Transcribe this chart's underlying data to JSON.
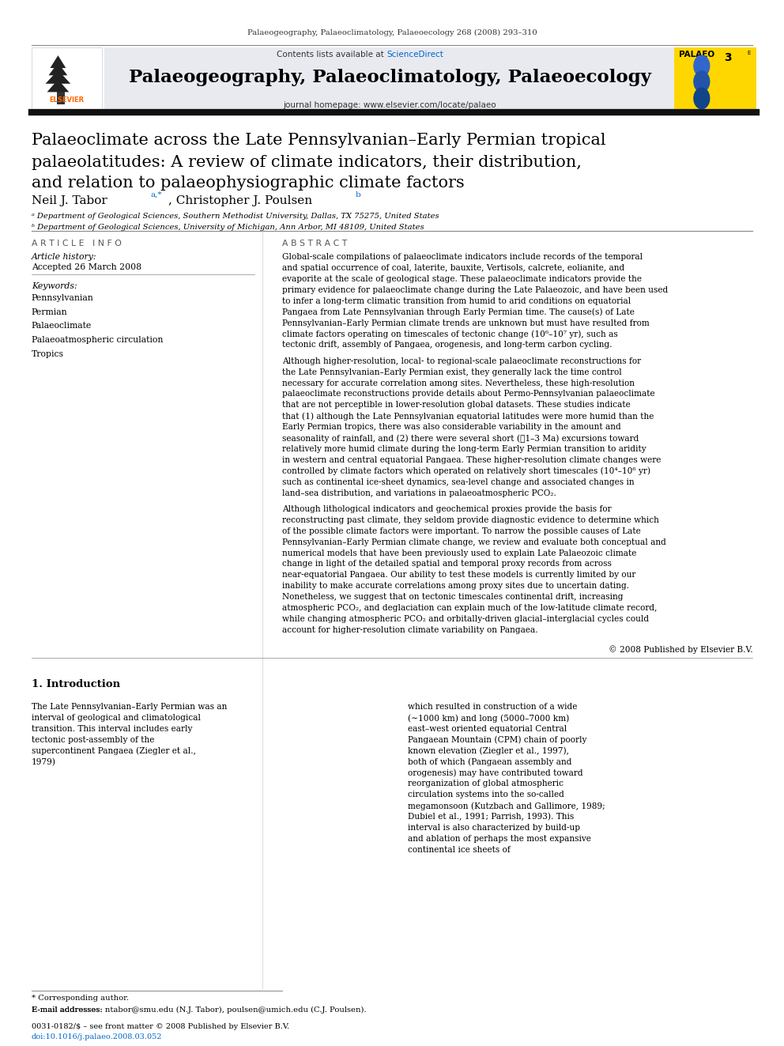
{
  "page_width": 9.92,
  "page_height": 13.23,
  "background_color": "#ffffff",
  "journal_ref": "Palaeogeography, Palaeoclimatology, Palaeoecology 268 (2008) 293–310",
  "journal_title": "Palaeogeography, Palaeoclimatology, Palaeoecology",
  "journal_homepage": "journal homepage: www.elsevier.com/locate/palaeo",
  "contents_line": "Contents lists available at ScienceDirect",
  "sciencedirect_color": "#0066cc",
  "elsevier_color": "#FF6600",
  "header_bg": "#e8eaf0",
  "palaeo_label_bg": "#FFD700",
  "article_title_line1": "Palaeoclimate across the Late Pennsylvanian–Early Permian tropical",
  "article_title_line2": "palaeolatitudes: A review of climate indicators, their distribution,",
  "article_title_line3": "and relation to palaeophysiographic climate factors",
  "author_main": "Neil J. Tabor ",
  "author_super1": "a,*",
  "author2": ", Christopher J. Poulsen ",
  "author_super2": "b",
  "affil_a": "ᵃ Department of Geological Sciences, Southern Methodist University, Dallas, TX 75275, United States",
  "affil_b": "ᵇ Department of Geological Sciences, University of Michigan, Ann Arbor, MI 48109, United States",
  "article_info_header": "A R T I C L E   I N F O",
  "abstract_header": "A B S T R A C T",
  "article_history": "Article history:",
  "accepted": "Accepted 26 March 2008",
  "keywords_label": "Keywords:",
  "keywords": [
    "Pennsylvanian",
    "Permian",
    "Palaeoclimate",
    "Palaeoatmospheric circulation",
    "Tropics"
  ],
  "abstract_para1": "Global-scale compilations of palaeoclimate indicators include records of the temporal and spatial occurrence of coal, laterite, bauxite, Vertisols, calcrete, eolianite, and evaporite at the scale of geological stage. These palaeoclimate indicators provide the primary evidence for palaeoclimate change during the Late Palaeozoic, and have been used to infer a long-term climatic transition from humid to arid conditions on equatorial Pangaea from Late Pennsylvanian through Early Permian time. The cause(s) of Late Pennsylvanian–Early Permian climate trends are unknown but must have resulted from climate factors operating on timescales of tectonic change (10⁶–10⁷ yr), such as tectonic drift, assembly of Pangaea, orogenesis, and long-term carbon cycling.",
  "abstract_para2": "Although higher-resolution, local- to regional-scale palaeoclimate reconstructions for the Late Pennsylvanian–Early Permian exist, they generally lack the time control necessary for accurate correlation among sites. Nevertheless, these high-resolution palaeoclimate reconstructions provide details about Permo-Pennsylvanian palaeoclimate that are not perceptible in lower-resolution global datasets. These studies indicate that (1) although the Late Pennsylvanian equatorial latitudes were more humid than the Early Permian tropics, there was also considerable variability in the amount and seasonality of rainfall, and (2) there were several short (≪1–3 Ma) excursions toward relatively more humid climate during the long-term Early Permian transition to aridity in western and central equatorial Pangaea. These higher-resolution climate changes were controlled by climate factors which operated on relatively short timescales (10⁴–10⁶ yr) such as continental ice-sheet dynamics, sea-level change and associated changes in land–sea distribution, and variations in palaeoatmospheric PCO₂.",
  "abstract_para3": "Although lithological indicators and geochemical proxies provide the basis for reconstructing past climate, they seldom provide diagnostic evidence to determine which of the possible climate factors were important. To narrow the possible causes of Late Pennsylvanian–Early Permian climate change, we review and evaluate both conceptual and numerical models that have been previously used to explain Late Palaeozoic climate change in light of the detailed spatial and temporal proxy records from across near-equatorial Pangaea. Our ability to test these models is currently limited by our inability to make accurate correlations among proxy sites due to uncertain dating. Nonetheless, we suggest that on tectonic timescales continental drift, increasing atmospheric PCO₂, and deglaciation can explain much of the low-latitude climate record, while changing atmospheric PCO₂ and orbitally-driven glacial–interglacial cycles could account for higher-resolution climate variability on Pangaea.",
  "abstract_copyright": "© 2008 Published by Elsevier B.V.",
  "section1_title": "1. Introduction",
  "section1_left": "The Late Pennsylvanian–Early Permian was an interval of geological and climatological transition. This interval includes early tectonic post-assembly of the supercontinent Pangaea (Ziegler et al., 1979)",
  "section1_right": "which resulted in construction of a wide (∼1000 km) and long (5000–7000 km) east–west oriented equatorial Central Pangaean Mountain (CPM) chain of poorly known elevation (Ziegler et al., 1997), both of which (Pangaean assembly and orogenesis) may have contributed toward reorganization of global atmospheric circulation systems into the so-called megamonsoon (Kutzbach and Gallimore, 1989; Dubiel et al., 1991; Parrish, 1993). This interval is also characterized by build-up and ablation of perhaps the most expansive continental ice sheets of",
  "footnote_star": "* Corresponding author.",
  "footnote_email": "E-mail addresses: ntabor@smu.edu (N.J. Tabor), poulsen@umich.edu (C.J. Poulsen).",
  "footer_line1": "0031-0182/$ – see front matter © 2008 Published by Elsevier B.V.",
  "footer_line2": "doi:10.1016/j.palaeo.2008.03.052",
  "link_color": "#0066cc"
}
